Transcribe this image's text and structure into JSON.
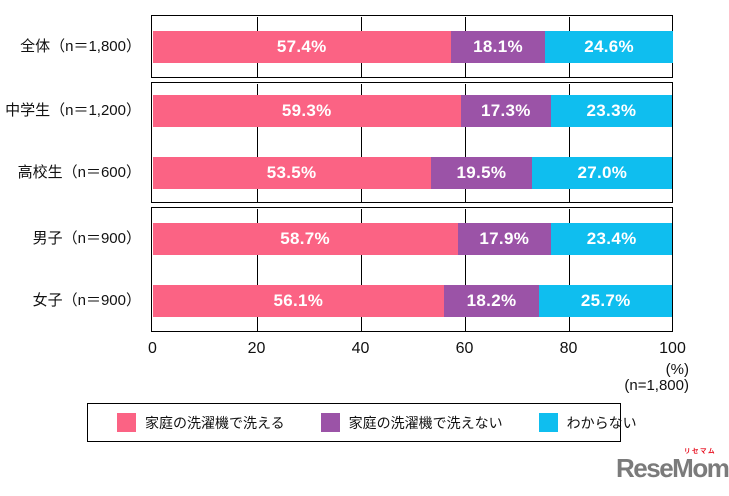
{
  "chart_data": {
    "type": "bar",
    "orientation": "horizontal",
    "stacked": true,
    "categories": [
      "全体（n＝1,800）",
      "中学生（n＝1,200）",
      "高校生（n＝600）",
      "男子（n＝900）",
      "女子（n＝900）"
    ],
    "series": [
      {
        "name": "家庭の洗濯機で洗える",
        "color": "#fb6384",
        "values": [
          57.4,
          59.3,
          53.5,
          58.7,
          56.1
        ]
      },
      {
        "name": "家庭の洗濯機で洗えない",
        "color": "#9b53a7",
        "values": [
          18.1,
          17.3,
          19.5,
          17.9,
          18.2
        ]
      },
      {
        "name": "わからない",
        "color": "#0fbeef",
        "values": [
          24.6,
          23.3,
          27.0,
          23.4,
          25.7
        ]
      }
    ],
    "row_groups": [
      [
        0
      ],
      [
        1,
        2
      ],
      [
        3,
        4
      ]
    ],
    "xlim": [
      0,
      100
    ],
    "x_ticks": [
      0,
      20,
      40,
      60,
      80,
      100
    ],
    "x_unit": "(%)",
    "note": "(n=1,800)",
    "value_suffix": "%",
    "gridlines": true,
    "legend_position": "bottom",
    "value_label_color": "#ffffff",
    "border_color": "#000000"
  },
  "legend": {
    "items": [
      {
        "label": "家庭の洗濯機で洗える",
        "color": "#fb6384"
      },
      {
        "label": "家庭の洗濯機で洗えない",
        "color": "#9b53a7"
      },
      {
        "label": "わからない",
        "color": "#0fbeef"
      }
    ]
  },
  "axis": {
    "ticks": [
      "0",
      "20",
      "40",
      "60",
      "80",
      "100"
    ],
    "unit_label": "(%)",
    "sample_note": "(n=1,800)"
  },
  "branding": {
    "logo": "ReseMom.",
    "ruby": "リセマム"
  }
}
